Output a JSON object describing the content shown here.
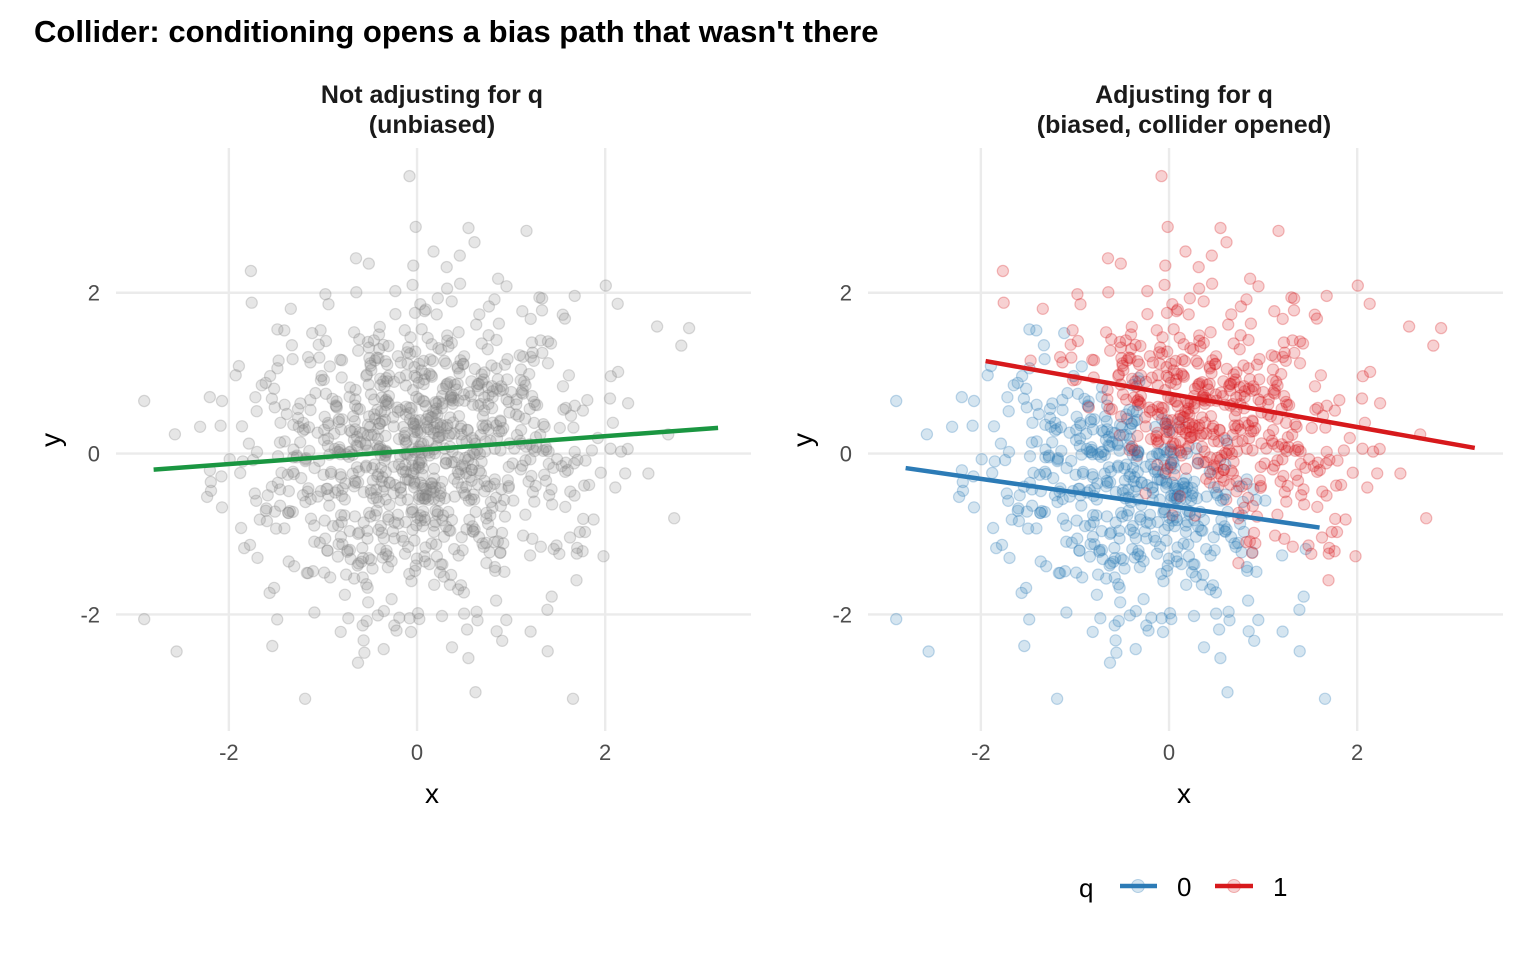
{
  "title": "Collider: conditioning opens a bias path that wasn't there",
  "chart_data": [
    {
      "type": "scatter",
      "title": "Not adjusting for q",
      "subtitle": "(unbiased)",
      "xlabel": "x",
      "ylabel": "y",
      "xlim": [
        -3.2,
        3.55
      ],
      "ylim": [
        -3.45,
        3.8
      ],
      "xticks": [
        -2,
        0,
        2
      ],
      "yticks": [
        -2,
        0,
        2
      ],
      "xtick_labels": [
        "-2",
        "0",
        "2"
      ],
      "ytick_labels": [
        "-2",
        "0",
        "2"
      ],
      "grid": true,
      "point_color": "#808080",
      "n_points": 1000,
      "fit_line": {
        "color": "#1a9641",
        "x": [
          -2.8,
          3.2
        ],
        "y": [
          -0.2,
          0.32
        ]
      }
    },
    {
      "type": "scatter",
      "title": "Adjusting for q",
      "subtitle": "(biased, collider opened)",
      "xlabel": "x",
      "ylabel": "y",
      "xlim": [
        -3.2,
        3.55
      ],
      "ylim": [
        -3.45,
        3.8
      ],
      "xticks": [
        -2,
        0,
        2
      ],
      "yticks": [
        -2,
        0,
        2
      ],
      "xtick_labels": [
        "-2",
        "0",
        "2"
      ],
      "ytick_labels": [
        "-2",
        "0",
        "2"
      ],
      "grid": true,
      "series": [
        {
          "name": "0",
          "color": "#2c7bb6",
          "fit_line": {
            "x": [
              -2.8,
              1.6
            ],
            "y": [
              -0.18,
              -0.92
            ]
          }
        },
        {
          "name": "1",
          "color": "#d7191c",
          "fit_line": {
            "x": [
              -1.95,
              3.25
            ],
            "y": [
              1.15,
              0.07
            ]
          }
        }
      ],
      "legend": {
        "title": "q",
        "position": "bottom",
        "entries": [
          "0",
          "1"
        ]
      }
    }
  ]
}
